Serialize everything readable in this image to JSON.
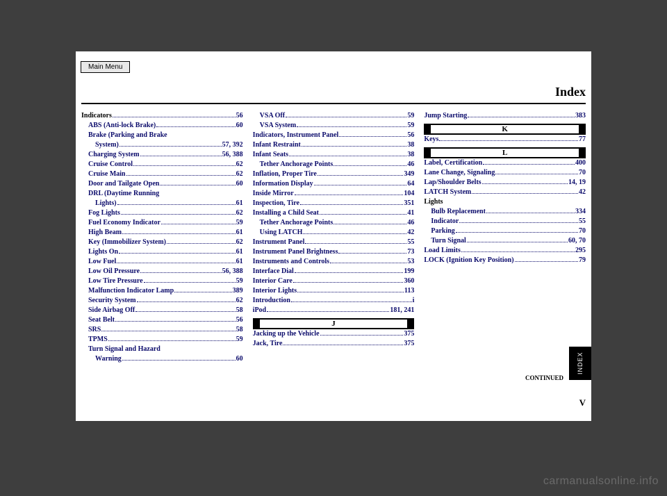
{
  "ui": {
    "menu_label": "Main Menu",
    "title": "Index",
    "tab_label": "INDEX",
    "continued": "CONTINUED",
    "page_number": "V",
    "watermark": "carmanualsonline.info"
  },
  "colors": {
    "page_bg": "#ffffff",
    "body_bg": "#3e3e3e",
    "link": "#0b0b6b",
    "text": "#000000",
    "watermark": "#6a6a6a"
  },
  "col1": [
    {
      "label": "Indicators",
      "pg": "56",
      "indent": 0,
      "black": true
    },
    {
      "label": "ABS (Anti-lock Brake)",
      "pg": "60",
      "indent": 1
    },
    {
      "label": "Brake (Parking and Brake",
      "pg": "",
      "indent": 1,
      "noleader": true
    },
    {
      "label": "System)",
      "pg": "57, 392",
      "indent": 2
    },
    {
      "label": "Charging System",
      "pg": "56, 388",
      "indent": 1
    },
    {
      "label": "Cruise Control",
      "pg": "62",
      "indent": 1
    },
    {
      "label": "Cruise Main",
      "pg": "62",
      "indent": 1
    },
    {
      "label": "Door and Tailgate Open",
      "pg": "60",
      "indent": 1
    },
    {
      "label": "DRL (Daytime Running",
      "pg": "",
      "indent": 1,
      "noleader": true
    },
    {
      "label": "Lights)",
      "pg": "61",
      "indent": 2
    },
    {
      "label": "Fog Lights",
      "pg": "62",
      "indent": 1
    },
    {
      "label": "Fuel Economy Indicator",
      "pg": "59",
      "indent": 1
    },
    {
      "label": "High Beam",
      "pg": "61",
      "indent": 1
    },
    {
      "label": "Key (Immobilizer System)",
      "pg": "62",
      "indent": 1
    },
    {
      "label": "Lights On",
      "pg": "61",
      "indent": 1
    },
    {
      "label": "Low Fuel",
      "pg": "61",
      "indent": 1
    },
    {
      "label": "Low Oil Pressure",
      "pg": "56, 388",
      "indent": 1
    },
    {
      "label": "Low Tire Pressure",
      "pg": "59",
      "indent": 1
    },
    {
      "label": "Malfunction Indicator Lamp",
      "pg": "389",
      "indent": 1
    },
    {
      "label": "Security System",
      "pg": "62",
      "indent": 1
    },
    {
      "label": "Side Airbag Off",
      "pg": "58",
      "indent": 1
    },
    {
      "label": "Seat Belt",
      "pg": "56",
      "indent": 1
    },
    {
      "label": "SRS",
      "pg": "58",
      "indent": 1
    },
    {
      "label": "TPMS",
      "pg": "59",
      "indent": 1
    },
    {
      "label": "Turn Signal and Hazard",
      "pg": "",
      "indent": 1,
      "noleader": true
    },
    {
      "label": "Warning",
      "pg": "60",
      "indent": 2
    }
  ],
  "col2": [
    {
      "label": "VSA Off",
      "pg": "59",
      "indent": 1
    },
    {
      "label": "VSA System",
      "pg": "59",
      "indent": 1
    },
    {
      "label": "Indicators, Instrument Panel",
      "pg": "56",
      "indent": 0
    },
    {
      "label": "Infant Restraint",
      "pg": "38",
      "indent": 0
    },
    {
      "label": "Infant Seats",
      "pg": "38",
      "indent": 0
    },
    {
      "label": "Tether Anchorage Points",
      "pg": "46",
      "indent": 1
    },
    {
      "label": "Inflation, Proper Tire",
      "pg": "349",
      "indent": 0
    },
    {
      "label": "Information Display",
      "pg": "64",
      "indent": 0
    },
    {
      "label": "Inside Mirror",
      "pg": "104",
      "indent": 0
    },
    {
      "label": "Inspection, Tire",
      "pg": "351",
      "indent": 0
    },
    {
      "label": "Installing a Child Seat",
      "pg": "41",
      "indent": 0
    },
    {
      "label": "Tether Anchorage Points",
      "pg": "46",
      "indent": 1
    },
    {
      "label": "Using LATCH",
      "pg": "42",
      "indent": 1
    },
    {
      "label": "Instrument Panel",
      "pg": "55",
      "indent": 0
    },
    {
      "label": "Instrument Panel Brightness",
      "pg": "73",
      "indent": 0
    },
    {
      "label": "Instruments and Controls",
      "pg": "53",
      "indent": 0
    },
    {
      "label": "Interface Dial",
      "pg": "199",
      "indent": 0
    },
    {
      "label": "Interior Care",
      "pg": "360",
      "indent": 0
    },
    {
      "label": "Interior Lights",
      "pg": "113",
      "indent": 0
    },
    {
      "label": "Introduction",
      "pg": "i",
      "indent": 0
    },
    {
      "label": "iPod",
      "pg": "181, 241",
      "indent": 0
    },
    {
      "head": "J"
    },
    {
      "label": "Jacking up the Vehicle",
      "pg": "375",
      "indent": 0
    },
    {
      "label": "Jack, Tire",
      "pg": "375",
      "indent": 0
    }
  ],
  "col3": [
    {
      "label": "Jump Starting",
      "pg": "383",
      "indent": 0
    },
    {
      "head": "K"
    },
    {
      "label": "Keys",
      "pg": "77",
      "indent": 0
    },
    {
      "head": "L"
    },
    {
      "label": "Label, Certification",
      "pg": "400",
      "indent": 0
    },
    {
      "label": "Lane Change, Signaling",
      "pg": "70",
      "indent": 0
    },
    {
      "label": "Lap/Shoulder Belts",
      "pg": "14, 19",
      "indent": 0
    },
    {
      "label": "LATCH System",
      "pg": "42",
      "indent": 0
    },
    {
      "label": "Lights",
      "pg": "",
      "indent": 0,
      "black": true,
      "noleader": true
    },
    {
      "label": "Bulb Replacement",
      "pg": "334",
      "indent": 1
    },
    {
      "label": "Indicator",
      "pg": "55",
      "indent": 1
    },
    {
      "label": "Parking",
      "pg": "70",
      "indent": 1
    },
    {
      "label": "Turn Signal",
      "pg": "60, 70",
      "indent": 1
    },
    {
      "label": "Load Limits",
      "pg": "295",
      "indent": 0
    },
    {
      "label": "LOCK (Ignition Key Position)",
      "pg": "79",
      "indent": 0
    }
  ]
}
